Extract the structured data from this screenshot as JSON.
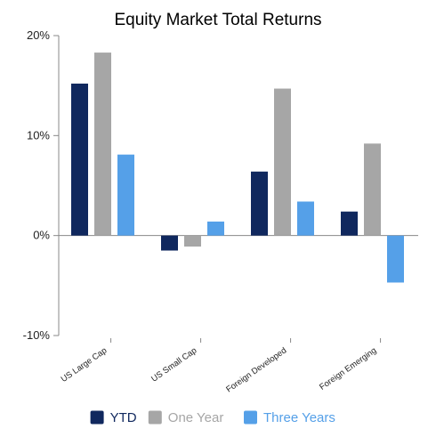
{
  "chart_data": {
    "type": "bar",
    "title": "Equity Market Total Returns",
    "xlabel": "",
    "ylabel": "",
    "categories": [
      "US Large Cap",
      "US Small Cap",
      "Foreign Developed",
      "Foreign Emerging"
    ],
    "series": [
      {
        "name": "YTD",
        "color": "#10285e",
        "values": [
          15.2,
          -1.5,
          6.4,
          2.4
        ]
      },
      {
        "name": "One Year",
        "color": "#a6a6a6",
        "values": [
          18.3,
          -1.1,
          14.7,
          9.2
        ]
      },
      {
        "name": "Three Years",
        "color": "#55a0e8",
        "values": [
          8.1,
          1.4,
          3.4,
          -4.7
        ]
      }
    ],
    "ylim": [
      -10,
      20
    ],
    "yticks": [
      -10,
      0,
      10,
      20
    ],
    "ytick_labels": [
      "-10%",
      "0%",
      "10%",
      "20%"
    ],
    "legend_position": "bottom",
    "grid": false
  }
}
